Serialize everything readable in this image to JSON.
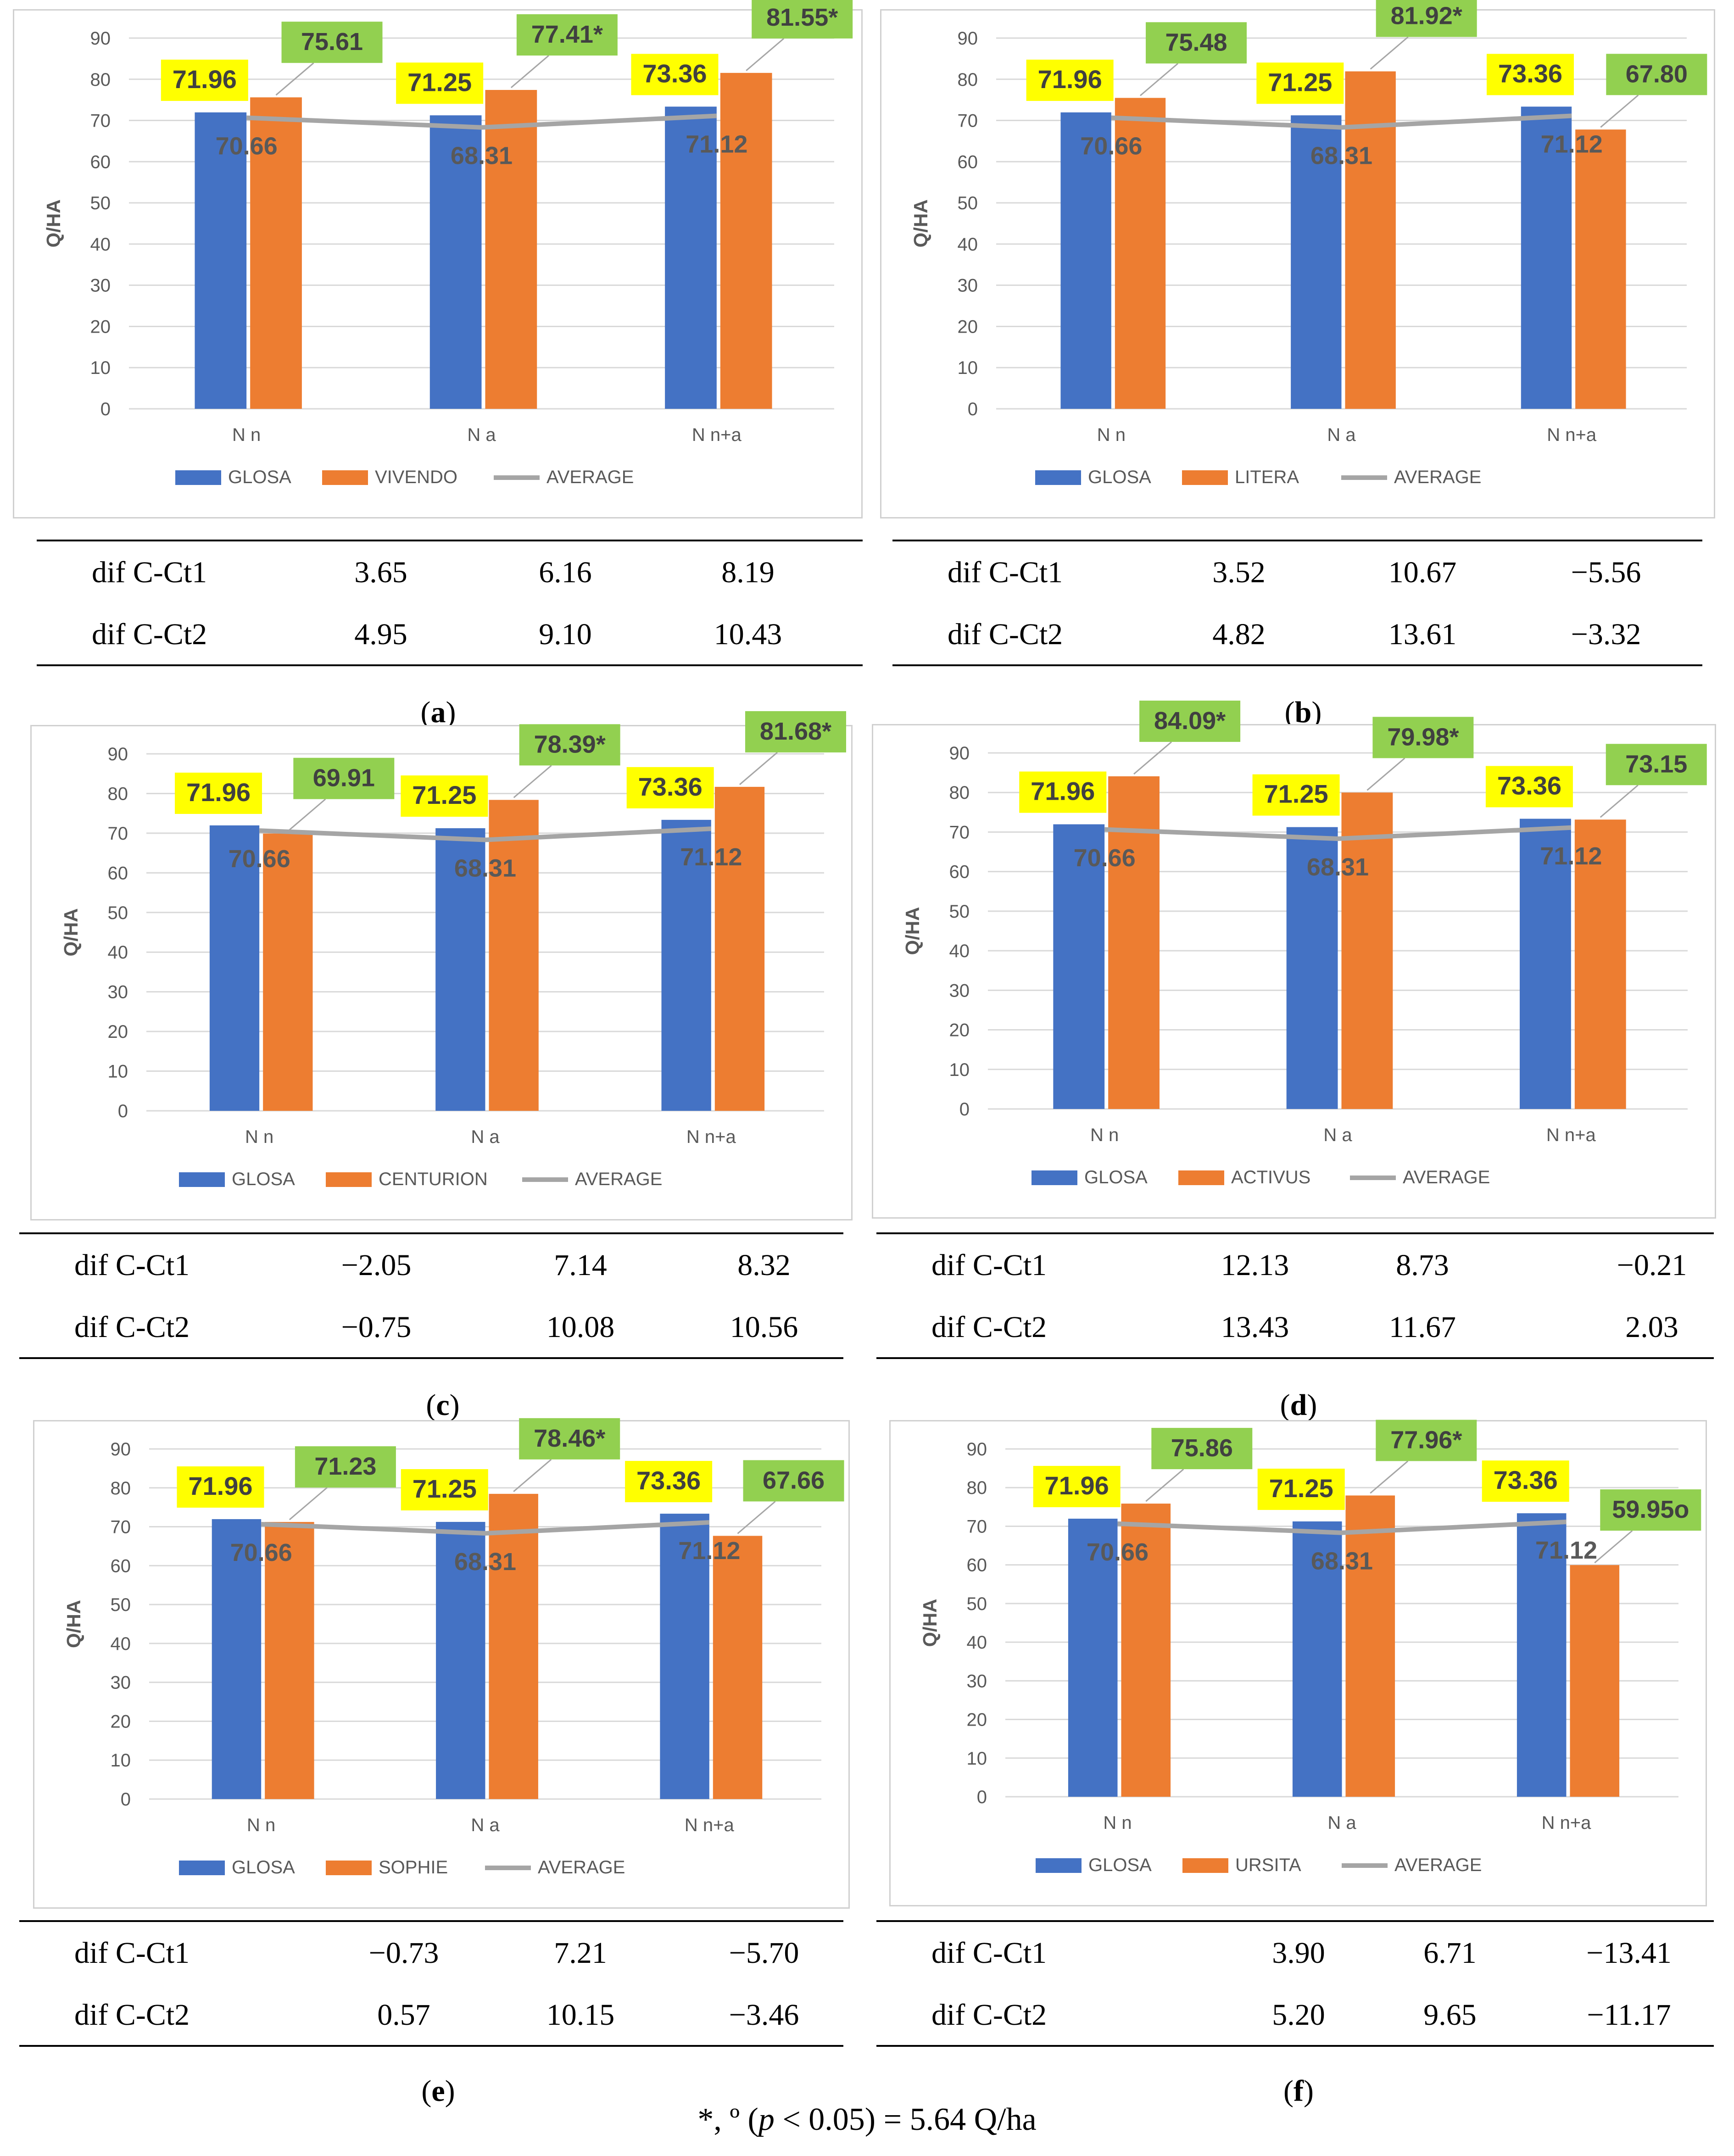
{
  "colors": {
    "glosa": "#4472c4",
    "variety": "#ed7d31",
    "average": "#a5a5a5",
    "glosa_label_bg": "#ffff00",
    "variety_label_bg": "#92d050",
    "grid": "#d9d9d9",
    "axis_text": "#595959"
  },
  "chart_data": [
    {
      "type": "bar",
      "panel": "a",
      "ylabel": "Q/HA",
      "ylim": [
        0,
        90
      ],
      "yticks": [
        "0",
        "10",
        "20",
        "30",
        "40",
        "50",
        "60",
        "70",
        "80",
        "90"
      ],
      "categories": [
        "N n",
        "N a",
        "N n+a"
      ],
      "series": [
        {
          "name": "GLOSA",
          "values": [
            71.96,
            71.25,
            73.36
          ]
        },
        {
          "name": "VIVENDO",
          "values": [
            75.61,
            77.41,
            81.55
          ]
        },
        {
          "name": "AVERAGE",
          "values": [
            70.66,
            68.31,
            71.12
          ]
        }
      ],
      "labels": {
        "glosa": [
          "71.96",
          "71.25",
          "73.36"
        ],
        "variety": [
          "75.61",
          "77.41*",
          "81.55*"
        ],
        "average": [
          "70.66",
          "68.31",
          "71.12"
        ]
      }
    },
    {
      "type": "bar",
      "panel": "b",
      "ylabel": "Q/HA",
      "ylim": [
        0,
        90
      ],
      "yticks": [
        "0",
        "10",
        "20",
        "30",
        "40",
        "50",
        "60",
        "70",
        "80",
        "90"
      ],
      "categories": [
        "N n",
        "N a",
        "N n+a"
      ],
      "series": [
        {
          "name": "GLOSA",
          "values": [
            71.96,
            71.25,
            73.36
          ]
        },
        {
          "name": "LITERA",
          "values": [
            75.48,
            81.92,
            67.8
          ]
        },
        {
          "name": "AVERAGE",
          "values": [
            70.66,
            68.31,
            71.12
          ]
        }
      ],
      "labels": {
        "glosa": [
          "71.96",
          "71.25",
          "73.36"
        ],
        "variety": [
          "75.48",
          "81.92*",
          "67.80"
        ],
        "average": [
          "70.66",
          "68.31",
          "71.12"
        ]
      }
    },
    {
      "type": "bar",
      "panel": "c",
      "ylabel": "Q/HA",
      "ylim": [
        0,
        90
      ],
      "yticks": [
        "0",
        "10",
        "20",
        "30",
        "40",
        "50",
        "60",
        "70",
        "80",
        "90"
      ],
      "categories": [
        "N n",
        "N a",
        "N n+a"
      ],
      "series": [
        {
          "name": "GLOSA",
          "values": [
            71.96,
            71.25,
            73.36
          ]
        },
        {
          "name": "CENTURION",
          "values": [
            69.91,
            78.39,
            81.68
          ]
        },
        {
          "name": "AVERAGE",
          "values": [
            70.66,
            68.31,
            71.12
          ]
        }
      ],
      "labels": {
        "glosa": [
          "71.96",
          "71.25",
          "73.36"
        ],
        "variety": [
          "69.91",
          "78.39*",
          "81.68*"
        ],
        "average": [
          "70.66",
          "68.31",
          "71.12"
        ]
      }
    },
    {
      "type": "bar",
      "panel": "d",
      "ylabel": "Q/HA",
      "ylim": [
        0,
        90
      ],
      "yticks": [
        "0",
        "10",
        "20",
        "30",
        "40",
        "50",
        "60",
        "70",
        "80",
        "90"
      ],
      "categories": [
        "N n",
        "N a",
        "N n+a"
      ],
      "series": [
        {
          "name": "GLOSA",
          "values": [
            71.96,
            71.25,
            73.36
          ]
        },
        {
          "name": "ACTIVUS",
          "values": [
            84.09,
            79.98,
            73.15
          ]
        },
        {
          "name": "AVERAGE",
          "values": [
            70.66,
            68.31,
            71.12
          ]
        }
      ],
      "labels": {
        "glosa": [
          "71.96",
          "71.25",
          "73.36"
        ],
        "variety": [
          "84.09*",
          "79.98*",
          "73.15"
        ],
        "average": [
          "70.66",
          "68.31",
          "71.12"
        ]
      }
    },
    {
      "type": "bar",
      "panel": "e",
      "ylabel": "Q/HA",
      "ylim": [
        0,
        90
      ],
      "yticks": [
        "0",
        "10",
        "20",
        "30",
        "40",
        "50",
        "60",
        "70",
        "80",
        "90"
      ],
      "categories": [
        "N n",
        "N a",
        "N n+a"
      ],
      "series": [
        {
          "name": "GLOSA",
          "values": [
            71.96,
            71.25,
            73.36
          ]
        },
        {
          "name": "SOPHIE",
          "values": [
            71.23,
            78.46,
            67.66
          ]
        },
        {
          "name": "AVERAGE",
          "values": [
            70.66,
            68.31,
            71.12
          ]
        }
      ],
      "labels": {
        "glosa": [
          "71.96",
          "71.25",
          "73.36"
        ],
        "variety": [
          "71.23",
          "78.46*",
          "67.66"
        ],
        "average": [
          "70.66",
          "68.31",
          "71.12"
        ]
      }
    },
    {
      "type": "bar",
      "panel": "f",
      "ylabel": "Q/HA",
      "ylim": [
        0,
        90
      ],
      "yticks": [
        "0",
        "10",
        "20",
        "30",
        "40",
        "50",
        "60",
        "70",
        "80",
        "90"
      ],
      "categories": [
        "N n",
        "N a",
        "N n+a"
      ],
      "series": [
        {
          "name": "GLOSA",
          "values": [
            71.96,
            71.25,
            73.36
          ]
        },
        {
          "name": "URSITA",
          "values": [
            75.86,
            77.96,
            59.95
          ]
        },
        {
          "name": "AVERAGE",
          "values": [
            70.66,
            68.31,
            71.12
          ]
        }
      ],
      "labels": {
        "glosa": [
          "71.96",
          "71.25",
          "73.36"
        ],
        "variety": [
          "75.86",
          "77.96*",
          "59.95o"
        ],
        "average": [
          "70.66",
          "68.31",
          "71.12"
        ]
      }
    }
  ],
  "tables": [
    {
      "panel": "a",
      "rows": [
        {
          "label": "dif C-Ct1",
          "values": [
            "3.65",
            "6.16",
            "8.19"
          ]
        },
        {
          "label": "dif C-Ct2",
          "values": [
            "4.95",
            "9.10",
            "10.43"
          ]
        }
      ]
    },
    {
      "panel": "b",
      "rows": [
        {
          "label": "dif C-Ct1",
          "values": [
            "3.52",
            "10.67",
            "−5.56"
          ]
        },
        {
          "label": "dif C-Ct2",
          "values": [
            "4.82",
            "13.61",
            "−3.32"
          ]
        }
      ]
    },
    {
      "panel": "c",
      "rows": [
        {
          "label": "dif C-Ct1",
          "values": [
            "−2.05",
            "7.14",
            "8.32"
          ]
        },
        {
          "label": "dif C-Ct2",
          "values": [
            "−0.75",
            "10.08",
            "10.56"
          ]
        }
      ]
    },
    {
      "panel": "d",
      "rows": [
        {
          "label": "dif C-Ct1",
          "values": [
            "12.13",
            "8.73",
            "−0.21"
          ]
        },
        {
          "label": "dif C-Ct2",
          "values": [
            "13.43",
            "11.67",
            "2.03"
          ]
        }
      ]
    },
    {
      "panel": "e",
      "rows": [
        {
          "label": "dif C-Ct1",
          "values": [
            "−0.73",
            "7.21",
            "−5.70"
          ]
        },
        {
          "label": "dif C-Ct2",
          "values": [
            "0.57",
            "10.15",
            "−3.46"
          ]
        }
      ]
    },
    {
      "panel": "f",
      "rows": [
        {
          "label": "dif C-Ct1",
          "values": [
            "3.90",
            "6.71",
            "−13.41"
          ]
        },
        {
          "label": "dif C-Ct2",
          "values": [
            "5.20",
            "9.65",
            "−11.17"
          ]
        }
      ]
    }
  ],
  "captions": [
    "a",
    "b",
    "c",
    "d",
    "e",
    "f"
  ],
  "footnote": {
    "prefix": "*, º (",
    "p": "p",
    "rest": " < 0.05) = 5.64 Q/ha"
  }
}
